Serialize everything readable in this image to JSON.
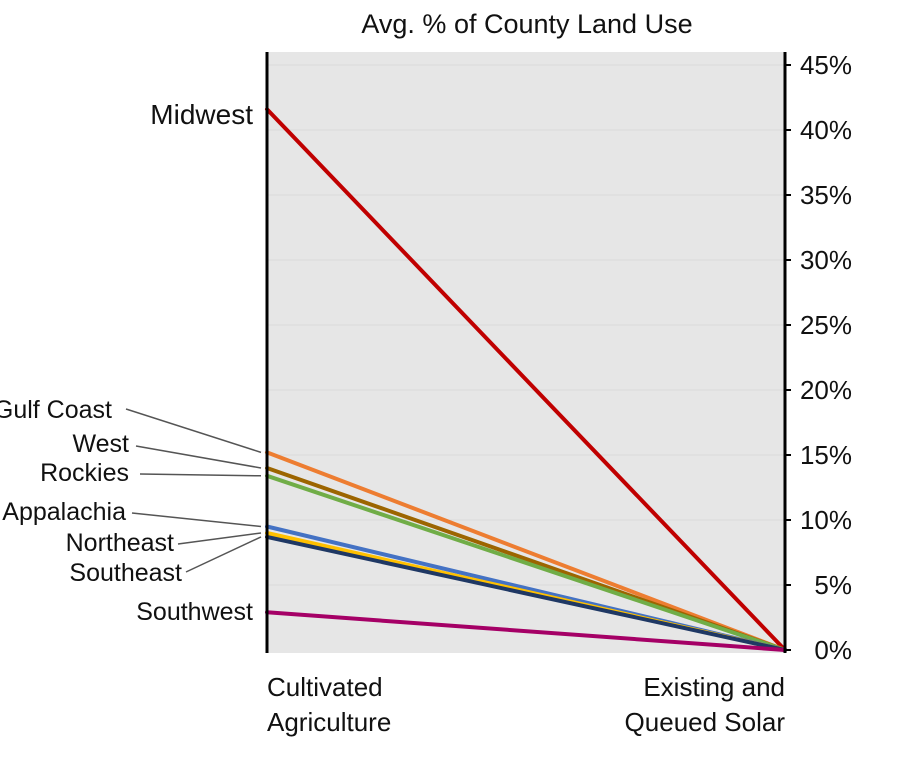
{
  "chart_data": {
    "type": "line",
    "title": "Avg. % of County Land Use",
    "categories": [
      "Cultivated Agriculture",
      "Existing and Queued Solar"
    ],
    "category_lines": [
      [
        "Cultivated",
        "Agriculture"
      ],
      [
        "Existing and",
        "Queued Solar"
      ]
    ],
    "ylim": [
      0,
      45
    ],
    "yticks": [
      0,
      5,
      10,
      15,
      20,
      25,
      30,
      35,
      40,
      45
    ],
    "ytick_labels": [
      "0%",
      "5%",
      "10%",
      "15%",
      "20%",
      "25%",
      "30%",
      "35%",
      "40%",
      "45%"
    ],
    "grid": true,
    "background_color": "#e6e6e6",
    "series": [
      {
        "name": "Midwest",
        "values": [
          41.6,
          0
        ],
        "color": "#c00000"
      },
      {
        "name": "Gulf Coast",
        "values": [
          15.2,
          0
        ],
        "color": "#ed7d31"
      },
      {
        "name": "West",
        "values": [
          14.0,
          0
        ],
        "color": "#9c6500"
      },
      {
        "name": "Rockies",
        "values": [
          13.4,
          0
        ],
        "color": "#70ad47"
      },
      {
        "name": "Appalachia",
        "values": [
          9.5,
          0
        ],
        "color": "#4472c4"
      },
      {
        "name": "Northeast",
        "values": [
          9.0,
          0
        ],
        "color": "#ffc000"
      },
      {
        "name": "Southeast",
        "values": [
          8.7,
          0
        ],
        "color": "#1f3864"
      },
      {
        "name": "Southwest",
        "values": [
          2.9,
          0
        ],
        "color": "#a50066"
      }
    ]
  }
}
